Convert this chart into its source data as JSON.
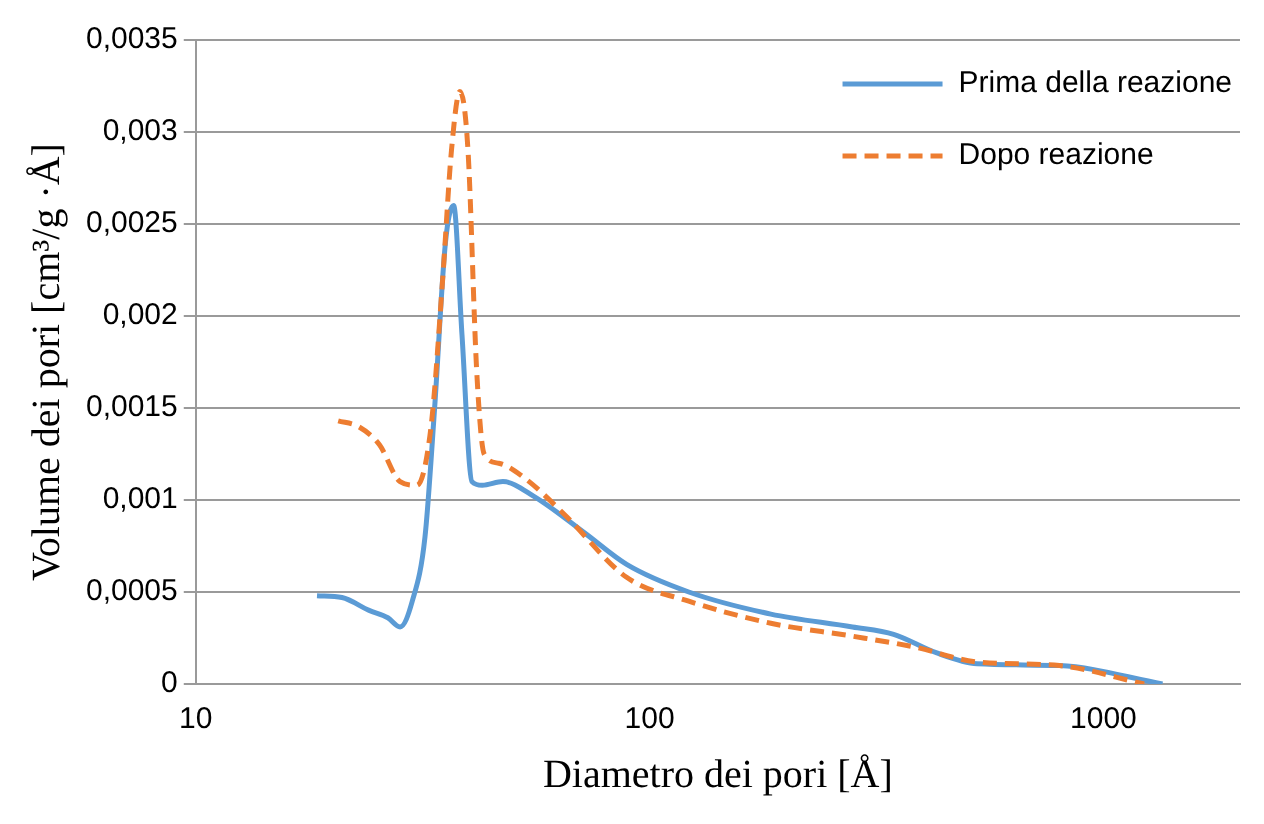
{
  "chart_data": {
    "type": "line",
    "xlabel": "Diametro dei pori [Å]",
    "ylabel": "Volume dei pori [cm³/g ·Å]",
    "log": "x",
    "grid": "y",
    "legend": "top right",
    "marker": "none",
    "xlim": [
      10,
      2000
    ],
    "xticks": [
      10,
      100,
      1000
    ],
    "ylim": [
      0,
      0.0035
    ],
    "yticks": [
      {
        "value": 0,
        "label": "0"
      },
      {
        "value": 0.0005,
        "label": "0,0005"
      },
      {
        "value": 0.001,
        "label": "0,001"
      },
      {
        "value": 0.0015,
        "label": "0,0015"
      },
      {
        "value": 0.002,
        "label": "0,002"
      },
      {
        "value": 0.0025,
        "label": "0,0025"
      },
      {
        "value": 0.003,
        "label": "0,003"
      },
      {
        "value": 0.0035,
        "label": "0,0035"
      }
    ],
    "series": [
      {
        "name": "Prima della reazione",
        "color": "#5b9bd5",
        "line_style": "solid",
        "x": [
          18.5,
          21,
          24.1,
          26.5,
          28.2,
          30,
          32,
          33.6,
          35.5,
          37,
          38.6,
          40.6,
          42.8,
          47.5,
          55.6,
          72,
          89,
          122,
          185,
          280,
          345,
          428,
          527,
          800,
          1350
        ],
        "values": [
          0.00048,
          0.00047,
          0.0004,
          0.00036,
          0.00031,
          0.00045,
          0.0008,
          0.0015,
          0.0024,
          0.0026,
          0.0019,
          0.0011,
          0.00108,
          0.0011,
          0.00102,
          0.00082,
          0.00065,
          0.0005,
          0.00038,
          0.00031,
          0.00027,
          0.00017,
          0.00011,
          0.0001,
          0
        ]
      },
      {
        "name": "Dopo reazione",
        "color": "#ed7d31",
        "line_style": "dashed",
        "x": [
          20.6,
          22.8,
          25.4,
          28.2,
          30.7,
          33,
          35,
          36.6,
          38.2,
          39.8,
          41.6,
          43.2,
          46.5,
          53,
          65,
          89,
          122,
          185,
          280,
          385,
          527,
          800,
          1230
        ],
        "values": [
          0.00143,
          0.0014,
          0.0013,
          0.0011,
          0.00108,
          0.0014,
          0.0022,
          0.0029,
          0.00322,
          0.0029,
          0.0017,
          0.00125,
          0.0012,
          0.00112,
          0.00092,
          0.00058,
          0.00045,
          0.00033,
          0.00026,
          0.0002,
          0.00012,
          0.0001,
          0
        ]
      }
    ]
  }
}
